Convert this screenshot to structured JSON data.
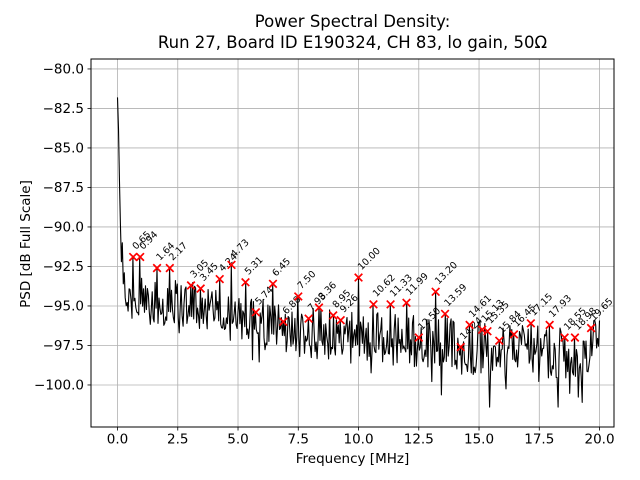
{
  "figure": {
    "title_line1": "Power Spectral Density:",
    "title_line2": "Run 27, Board ID E190324, CH 83, lo gain, 50Ω",
    "xlabel": "Frequency [MHz]",
    "ylabel": "PSD [dB Full Scale]"
  },
  "colors": {
    "background": "#ffffff",
    "trace": "#000000",
    "marker": "#ff0000",
    "grid": "#b0b0b0",
    "spine": "#000000",
    "text": "#000000"
  },
  "chart_data": {
    "type": "line",
    "title": "Power Spectral Density:\nRun 27, Board ID E190324, CH 83, lo gain, 50Ω",
    "xlabel": "Frequency [MHz]",
    "ylabel": "PSD [dB Full Scale]",
    "xlim": [
      -1.1,
      20.6
    ],
    "ylim": [
      -102.66,
      -79.37
    ],
    "grid": true,
    "legend": "none",
    "x_ticks": [
      {
        "v": 0.0,
        "label": "0.0"
      },
      {
        "v": 2.5,
        "label": "2.5"
      },
      {
        "v": 5.0,
        "label": "5.0"
      },
      {
        "v": 7.5,
        "label": "7.5"
      },
      {
        "v": 10.0,
        "label": "10.0"
      },
      {
        "v": 12.5,
        "label": "12.5"
      },
      {
        "v": 15.0,
        "label": "15.0"
      },
      {
        "v": 17.5,
        "label": "17.5"
      },
      {
        "v": 20.0,
        "label": "20.0"
      }
    ],
    "y_ticks": [
      {
        "v": -80.0,
        "label": "−80.0"
      },
      {
        "v": -82.5,
        "label": "−82.5"
      },
      {
        "v": -85.0,
        "label": "−85.0"
      },
      {
        "v": -87.5,
        "label": "−87.5"
      },
      {
        "v": -90.0,
        "label": "−90.0"
      },
      {
        "v": -92.5,
        "label": "−92.5"
      },
      {
        "v": -95.0,
        "label": "−95.0"
      },
      {
        "v": -97.5,
        "label": "−97.5"
      },
      {
        "v": -100.0,
        "label": "−100.0"
      }
    ],
    "peaks": [
      {
        "f": 0.65,
        "psd": -91.9,
        "label": "0.65"
      },
      {
        "f": 0.94,
        "psd": -91.9,
        "label": "0.94"
      },
      {
        "f": 1.64,
        "psd": -92.6,
        "label": "1.64"
      },
      {
        "f": 2.17,
        "psd": -92.6,
        "label": "2.17"
      },
      {
        "f": 3.05,
        "psd": -93.7,
        "label": "3.05"
      },
      {
        "f": 3.45,
        "psd": -93.9,
        "label": "3.45"
      },
      {
        "f": 4.24,
        "psd": -93.3,
        "label": "4.24"
      },
      {
        "f": 4.73,
        "psd": -92.4,
        "label": "4.73"
      },
      {
        "f": 5.31,
        "psd": -93.5,
        "label": "5.31"
      },
      {
        "f": 5.74,
        "psd": -95.4,
        "label": "5.74"
      },
      {
        "f": 6.45,
        "psd": -93.6,
        "label": "6.45"
      },
      {
        "f": 6.88,
        "psd": -96.0,
        "label": "6.88"
      },
      {
        "f": 7.5,
        "psd": -94.4,
        "label": "7.50"
      },
      {
        "f": 7.93,
        "psd": -95.8,
        "label": "7.93"
      },
      {
        "f": 8.36,
        "psd": -95.1,
        "label": "8.36"
      },
      {
        "f": 8.95,
        "psd": -95.6,
        "label": "8.95"
      },
      {
        "f": 9.26,
        "psd": -95.9,
        "label": "9.26"
      },
      {
        "f": 10.0,
        "psd": -93.2,
        "label": "10.00"
      },
      {
        "f": 10.62,
        "psd": -94.9,
        "label": "10.62"
      },
      {
        "f": 11.33,
        "psd": -94.9,
        "label": "11.33"
      },
      {
        "f": 11.99,
        "psd": -94.8,
        "label": "11.99"
      },
      {
        "f": 12.5,
        "psd": -97.0,
        "label": "12.50"
      },
      {
        "f": 13.2,
        "psd": -94.1,
        "label": "13.20"
      },
      {
        "f": 13.59,
        "psd": -95.5,
        "label": "13.59"
      },
      {
        "f": 14.24,
        "psd": -97.6,
        "label": "14.24"
      },
      {
        "f": 14.61,
        "psd": -96.2,
        "label": "14.61"
      },
      {
        "f": 15.13,
        "psd": -96.5,
        "label": "15.13"
      },
      {
        "f": 15.35,
        "psd": -96.6,
        "label": "15.35"
      },
      {
        "f": 15.84,
        "psd": -97.2,
        "label": "15.84"
      },
      {
        "f": 16.45,
        "psd": -96.8,
        "label": "16.45"
      },
      {
        "f": 17.15,
        "psd": -96.1,
        "label": "17.15"
      },
      {
        "f": 17.93,
        "psd": -96.2,
        "label": "17.93"
      },
      {
        "f": 18.55,
        "psd": -97.0,
        "label": "18.55"
      },
      {
        "f": 18.98,
        "psd": -97.0,
        "label": "18.98"
      },
      {
        "f": 19.65,
        "psd": -96.4,
        "label": "19.65"
      }
    ],
    "trace": {
      "lead_in": [
        [
          0.0,
          -81.8
        ],
        [
          0.04,
          -83.8
        ],
        [
          0.08,
          -86.9
        ],
        [
          0.12,
          -89.8
        ],
        [
          0.16,
          -92.2
        ],
        [
          0.2,
          -91.0
        ],
        [
          0.24,
          -93.6
        ],
        [
          0.28,
          -92.9
        ]
      ],
      "anchors": [
        [
          0.3,
          -93.8
        ],
        [
          0.8,
          -94.3
        ],
        [
          1.5,
          -94.6
        ],
        [
          2.5,
          -95.0
        ],
        [
          3.5,
          -95.3
        ],
        [
          4.5,
          -95.5
        ],
        [
          5.5,
          -95.9
        ],
        [
          6.5,
          -96.3
        ],
        [
          7.5,
          -96.5
        ],
        [
          8.5,
          -96.7
        ],
        [
          9.5,
          -96.9
        ],
        [
          10.5,
          -97.0
        ],
        [
          11.5,
          -97.1
        ],
        [
          12.5,
          -97.3
        ],
        [
          13.5,
          -97.4
        ],
        [
          14.5,
          -97.7
        ],
        [
          15.5,
          -97.7
        ],
        [
          16.5,
          -97.9
        ],
        [
          17.5,
          -97.8
        ],
        [
          18.5,
          -98.0
        ],
        [
          19.5,
          -97.9
        ],
        [
          20.0,
          -97.2
        ]
      ],
      "jitter_db": 1.7,
      "dip_prob": 0.05,
      "floor_db": -101.4,
      "seed": 27,
      "f_start": 0.32,
      "f_end": 20.0,
      "f_step": 0.04
    }
  }
}
